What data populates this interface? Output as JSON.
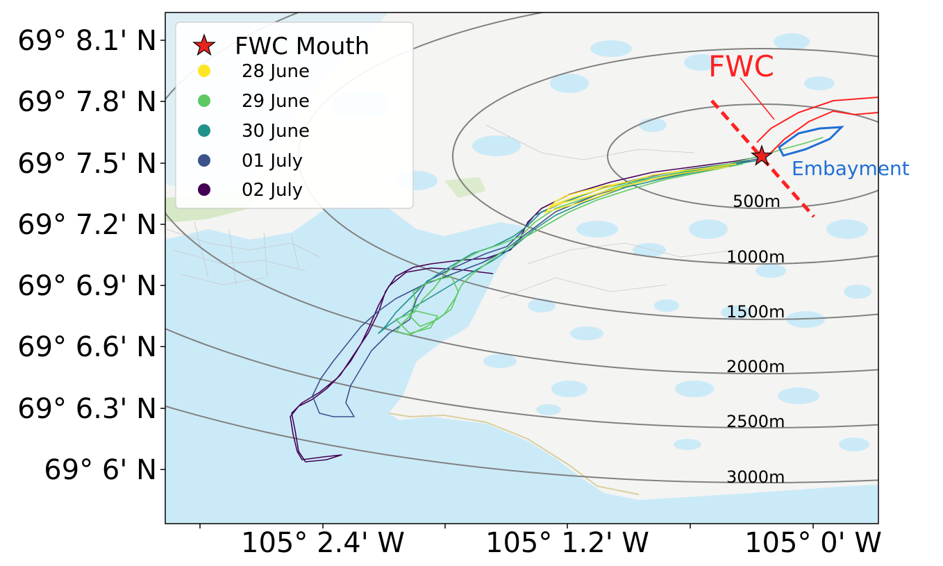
{
  "map": {
    "axis_y_labels": [
      "69° 8.1' N",
      "69° 7.8' N",
      "69° 7.5' N",
      "69° 7.2' N",
      "69° 6.9' N",
      "69° 6.6' N",
      "69° 6.3' N",
      "69° 6' N"
    ],
    "axis_x_labels": [
      "105° 2.4' W",
      "105° 1.2' W",
      "105° 0' W"
    ],
    "annotations": {
      "fwc": "FWC",
      "embayment": "Embayment"
    },
    "distance_rings": [
      "500m",
      "1000m",
      "1500m",
      "2000m",
      "2500m",
      "3000m"
    ],
    "legend": {
      "mouth_label": "FWC Mouth",
      "entries": [
        {
          "label": "28 June",
          "color": "#fde725"
        },
        {
          "label": "29 June",
          "color": "#5ec962"
        },
        {
          "label": "30 June",
          "color": "#21918c"
        },
        {
          "label": "01 July",
          "color": "#3b528b"
        },
        {
          "label": "02 July",
          "color": "#440154"
        }
      ]
    },
    "colors": {
      "water": "#cbeaf8",
      "land": "#f4f4f2",
      "ring": "#808080",
      "fwc": "#ff2020",
      "embayment": "#1f6fd6",
      "star": "#e8241e"
    }
  }
}
